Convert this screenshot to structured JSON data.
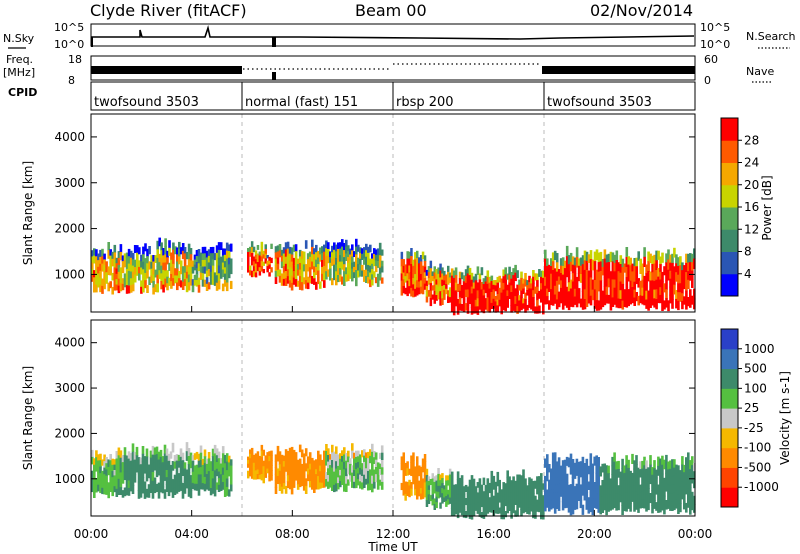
{
  "header": {
    "station": "Clyde River (fitACF)",
    "beam": "Beam 00",
    "date": "02/Nov/2014"
  },
  "status_panels": {
    "nsky_label": "N.Sky",
    "nsearch_label": "N.Search",
    "nsky_ticks": [
      "10^5",
      "10^0"
    ],
    "nsearch_ticks": [
      "10^5",
      "10^0"
    ],
    "freq_label_1": "Freq.",
    "freq_label_2": "[MHz]",
    "freq_ticks": [
      "18",
      "8"
    ],
    "nave_label": "Nave",
    "nave_ticks": [
      "60",
      "0"
    ],
    "cpid_label": "CPID",
    "cpid_segments": [
      {
        "label": "twofsound 3503",
        "start_h": 0,
        "end_h": 6
      },
      {
        "label": "normal (fast) 151",
        "start_h": 6,
        "end_h": 12
      },
      {
        "label": "rbsp 200",
        "start_h": 12,
        "end_h": 18
      },
      {
        "label": "twofsound 3503",
        "start_h": 18,
        "end_h": 24
      }
    ]
  },
  "axes": {
    "y_label": "Slant Range [km]",
    "y_ticks": [
      "1000",
      "2000",
      "3000",
      "4000"
    ],
    "x_ticks": [
      "00:00",
      "04:00",
      "08:00",
      "12:00",
      "16:00",
      "20:00",
      "00:00"
    ],
    "x_label": "Time UT",
    "power_label": "Power [dB]",
    "power_ticks": [
      "4",
      "8",
      "12",
      "16",
      "20",
      "24",
      "28"
    ],
    "velocity_label": "Velocity [m s-1]",
    "velocity_ticks": [
      "1000",
      "500",
      "100",
      "25",
      "-25",
      "-100",
      "-500",
      "-1000"
    ]
  },
  "colors": {
    "power_scale": [
      "#0000ff",
      "#2a56b4",
      "#3d8a6a",
      "#5aa85a",
      "#c8d400",
      "#f5a800",
      "#ff5a00",
      "#ff0000"
    ],
    "velocity_scale": [
      "#2a40c8",
      "#3a74b8",
      "#3d8a6a",
      "#55c040",
      "#c8c8c8",
      "#f5b800",
      "#ff8a00",
      "#ff4400",
      "#ff0000"
    ]
  },
  "chart_data": [
    {
      "type": "heatmap",
      "title": "Power",
      "xlabel": "Time UT",
      "ylabel": "Slant Range [km]",
      "xlim": [
        0,
        24
      ],
      "ylim": [
        180,
        4500
      ],
      "colorbar": "Power [dB]",
      "bands": [
        {
          "start_h": 0.0,
          "end_h": 1.3,
          "range_lo": 650,
          "range_hi": 1600,
          "value": 22
        },
        {
          "start_h": 1.3,
          "end_h": 2.6,
          "range_lo": 650,
          "range_hi": 1650,
          "value": 18
        },
        {
          "start_h": 2.6,
          "end_h": 4.0,
          "range_lo": 700,
          "range_hi": 1700,
          "value": 20
        },
        {
          "start_h": 4.0,
          "end_h": 5.6,
          "range_lo": 700,
          "range_hi": 1650,
          "value": 14
        },
        {
          "start_h": 6.2,
          "end_h": 7.2,
          "range_lo": 1000,
          "range_hi": 1650,
          "value": 26
        },
        {
          "start_h": 7.3,
          "end_h": 9.3,
          "range_lo": 750,
          "range_hi": 1650,
          "value": 22
        },
        {
          "start_h": 9.3,
          "end_h": 11.6,
          "range_lo": 800,
          "range_hi": 1700,
          "value": 16
        },
        {
          "start_h": 12.3,
          "end_h": 13.3,
          "range_lo": 600,
          "range_hi": 1500,
          "value": 26
        },
        {
          "start_h": 13.3,
          "end_h": 14.3,
          "range_lo": 400,
          "range_hi": 1200,
          "value": 24
        },
        {
          "start_h": 14.3,
          "end_h": 18.0,
          "range_lo": 200,
          "range_hi": 1100,
          "value": 30
        },
        {
          "start_h": 18.0,
          "end_h": 24.0,
          "range_lo": 300,
          "range_hi": 1500,
          "value": 30
        }
      ]
    },
    {
      "type": "heatmap",
      "title": "Velocity",
      "xlabel": "Time UT",
      "ylabel": "Slant Range [km]",
      "xlim": [
        0,
        24
      ],
      "ylim": [
        180,
        4500
      ],
      "colorbar": "Velocity [m s-1]",
      "bands": [
        {
          "start_h": 0.0,
          "end_h": 1.3,
          "range_lo": 650,
          "range_hi": 1600,
          "value": 80
        },
        {
          "start_h": 1.3,
          "end_h": 4.0,
          "range_lo": 650,
          "range_hi": 1700,
          "value": 150
        },
        {
          "start_h": 4.0,
          "end_h": 5.6,
          "range_lo": 700,
          "range_hi": 1650,
          "value": 100
        },
        {
          "start_h": 6.2,
          "end_h": 7.2,
          "range_lo": 1000,
          "range_hi": 1650,
          "value": -120
        },
        {
          "start_h": 7.3,
          "end_h": 9.3,
          "range_lo": 750,
          "range_hi": 1650,
          "value": -150
        },
        {
          "start_h": 9.3,
          "end_h": 11.6,
          "range_lo": 800,
          "range_hi": 1700,
          "value": 60
        },
        {
          "start_h": 12.3,
          "end_h": 13.3,
          "range_lo": 600,
          "range_hi": 1500,
          "value": -150
        },
        {
          "start_h": 13.3,
          "end_h": 14.3,
          "range_lo": 400,
          "range_hi": 1200,
          "value": 90
        },
        {
          "start_h": 14.3,
          "end_h": 18.0,
          "range_lo": 200,
          "range_hi": 1100,
          "value": 300
        },
        {
          "start_h": 18.0,
          "end_h": 20.2,
          "range_lo": 300,
          "range_hi": 1500,
          "value": 800
        },
        {
          "start_h": 20.2,
          "end_h": 24.0,
          "range_lo": 300,
          "range_hi": 1500,
          "value": 200
        }
      ]
    }
  ]
}
